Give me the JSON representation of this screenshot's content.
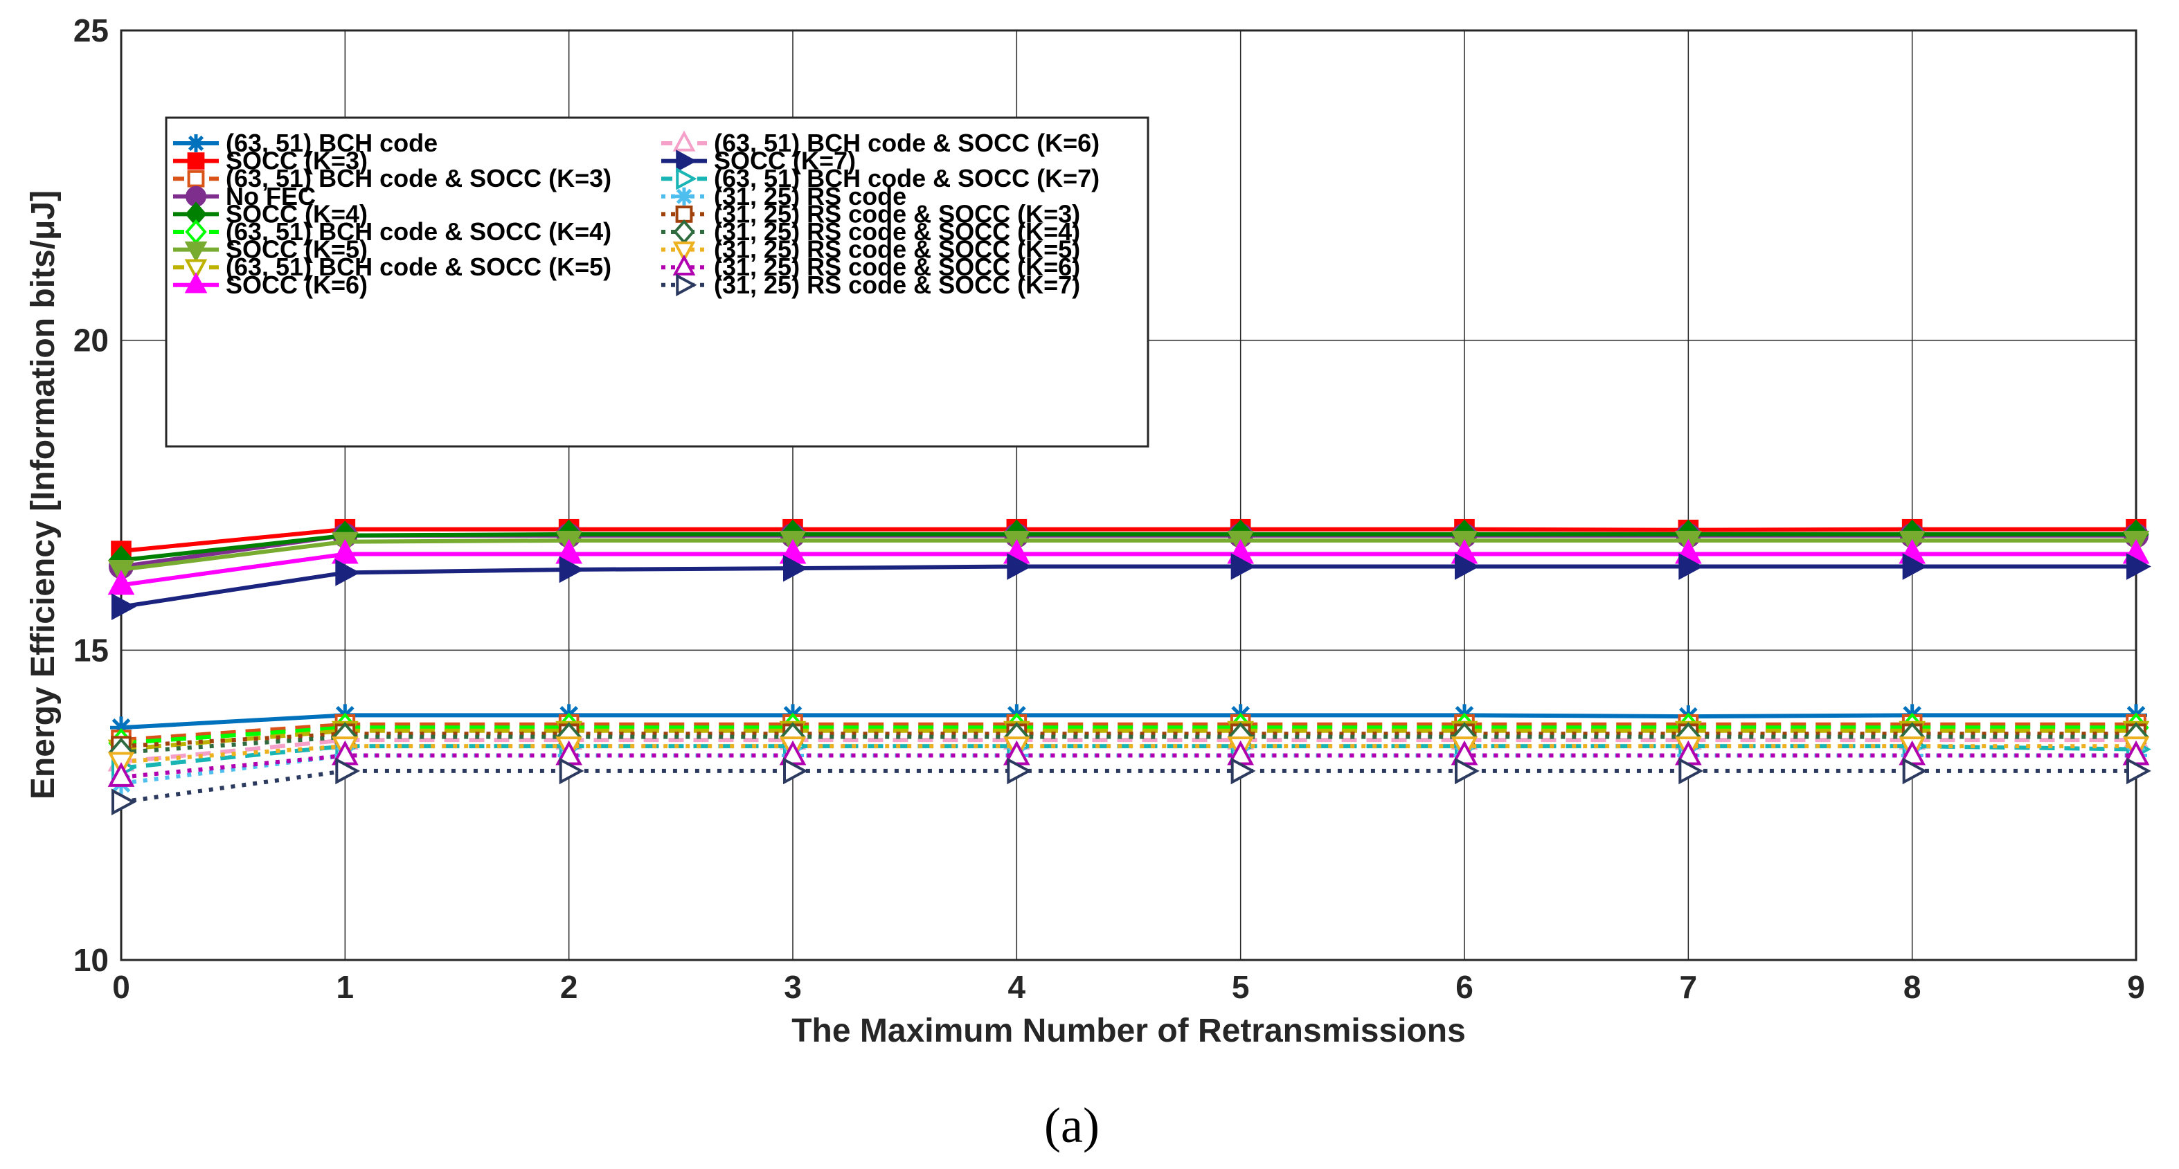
{
  "chart_data": {
    "type": "line",
    "xlabel": "The Maximum Number of Retransmissions",
    "ylabel": "Energy Efficiency [Information bits/μJ]",
    "xlim": [
      0,
      9
    ],
    "ylim": [
      10,
      25
    ],
    "x_ticks": [
      "0",
      "1",
      "2",
      "3",
      "4",
      "5",
      "6",
      "7",
      "8",
      "9"
    ],
    "y_ticks": [
      "10",
      "15",
      "20",
      "25"
    ],
    "y_tick_values": [
      10,
      15,
      20,
      25
    ],
    "grid": true,
    "legend_position": "top-left",
    "caption": "(a)",
    "x": [
      0,
      1,
      2,
      3,
      4,
      5,
      6,
      7,
      8,
      9
    ],
    "series": [
      {
        "name": "(63, 51) BCH code",
        "color": "#0072BD",
        "marker": "asterisk",
        "dash": "solid",
        "values": [
          13.75,
          13.95,
          13.95,
          13.95,
          13.95,
          13.95,
          13.95,
          13.93,
          13.95,
          13.95
        ]
      },
      {
        "name": "SOCC (K=3)",
        "color": "#FF0000",
        "marker": "square",
        "dash": "solid",
        "values": [
          16.6,
          16.95,
          16.95,
          16.95,
          16.95,
          16.95,
          16.95,
          16.94,
          16.95,
          16.95
        ]
      },
      {
        "name": "(63, 51) BCH code & SOCC (K=3)",
        "color": "#D95319",
        "marker": "square-open",
        "dash": "dashed",
        "values": [
          13.55,
          13.8,
          13.8,
          13.8,
          13.8,
          13.8,
          13.8,
          13.8,
          13.8,
          13.8
        ]
      },
      {
        "name": "No FEC",
        "color": "#7E2F8E",
        "marker": "circle",
        "dash": "solid",
        "values": [
          16.35,
          16.85,
          16.85,
          16.85,
          16.85,
          16.85,
          16.85,
          16.85,
          16.85,
          16.85
        ]
      },
      {
        "name": "SOCC (K=4)",
        "color": "#008000",
        "marker": "diamond",
        "dash": "solid",
        "values": [
          16.45,
          16.85,
          16.87,
          16.87,
          16.87,
          16.87,
          16.87,
          16.87,
          16.87,
          16.87
        ]
      },
      {
        "name": "(63, 51) BCH code & SOCC (K=4)",
        "color": "#00FF00",
        "marker": "diamond-open",
        "dash": "dashed",
        "values": [
          13.5,
          13.75,
          13.75,
          13.75,
          13.75,
          13.75,
          13.75,
          13.75,
          13.75,
          13.75
        ]
      },
      {
        "name": "SOCC (K=5)",
        "color": "#77AC30",
        "marker": "triangle-down",
        "dash": "solid",
        "values": [
          16.3,
          16.75,
          16.77,
          16.77,
          16.77,
          16.77,
          16.77,
          16.77,
          16.77,
          16.77
        ]
      },
      {
        "name": "(63, 51) BCH code & SOCC (K=5)",
        "color": "#BDB200",
        "marker": "triangle-down-open",
        "dash": "dashed",
        "values": [
          13.4,
          13.7,
          13.7,
          13.7,
          13.7,
          13.7,
          13.7,
          13.7,
          13.7,
          13.7
        ]
      },
      {
        "name": "SOCC (K=6)",
        "color": "#FF00FF",
        "marker": "triangle-up",
        "dash": "solid",
        "values": [
          16.05,
          16.55,
          16.55,
          16.55,
          16.55,
          16.55,
          16.55,
          16.55,
          16.55,
          16.55
        ]
      },
      {
        "name": "(63, 51) BCH code & SOCC (K=6)",
        "color": "#F4A0C8",
        "marker": "triangle-up-open",
        "dash": "dashed",
        "values": [
          13.2,
          13.55,
          13.55,
          13.55,
          13.55,
          13.55,
          13.55,
          13.55,
          13.55,
          13.55
        ]
      },
      {
        "name": "SOCC (K=7)",
        "color": "#1A237E",
        "marker": "triangle-right",
        "dash": "solid",
        "values": [
          15.7,
          16.25,
          16.3,
          16.32,
          16.35,
          16.35,
          16.35,
          16.35,
          16.35,
          16.35
        ]
      },
      {
        "name": "(63, 51) BCH code & SOCC (K=7)",
        "color": "#19B5B5",
        "marker": "triangle-right-open",
        "dash": "dashed",
        "values": [
          13.1,
          13.45,
          13.45,
          13.45,
          13.45,
          13.45,
          13.45,
          13.45,
          13.45,
          13.4
        ]
      },
      {
        "name": "(31, 25) RS code",
        "color": "#4DBEEE",
        "marker": "asterisk",
        "dash": "dotted",
        "values": [
          12.85,
          13.3,
          13.3,
          13.3,
          13.3,
          13.3,
          13.3,
          13.3,
          13.3,
          13.3
        ]
      },
      {
        "name": "(31, 25) RS code & SOCC (K=3)",
        "color": "#A0400A",
        "marker": "square-open",
        "dash": "dotted",
        "values": [
          13.45,
          13.65,
          13.65,
          13.65,
          13.65,
          13.65,
          13.65,
          13.65,
          13.65,
          13.65
        ]
      },
      {
        "name": "(31, 25) RS code & SOCC (K=4)",
        "color": "#2E6B3F",
        "marker": "diamond-open",
        "dash": "dotted",
        "values": [
          13.35,
          13.6,
          13.6,
          13.6,
          13.6,
          13.6,
          13.6,
          13.6,
          13.6,
          13.6
        ]
      },
      {
        "name": "(31, 25) RS code & SOCC (K=5)",
        "color": "#EDB120",
        "marker": "triangle-down-open",
        "dash": "dotted",
        "values": [
          13.2,
          13.45,
          13.45,
          13.45,
          13.45,
          13.45,
          13.45,
          13.45,
          13.45,
          13.45
        ]
      },
      {
        "name": "(31, 25) RS code & SOCC (K=6)",
        "color": "#B000B0",
        "marker": "triangle-up-open",
        "dash": "dotted",
        "values": [
          12.95,
          13.3,
          13.3,
          13.3,
          13.3,
          13.3,
          13.3,
          13.3,
          13.3,
          13.3
        ]
      },
      {
        "name": "(31, 25) RS code & SOCC (K=7)",
        "color": "#2B3A5E",
        "marker": "triangle-right-open",
        "dash": "dotted",
        "values": [
          12.55,
          13.05,
          13.05,
          13.05,
          13.05,
          13.05,
          13.05,
          13.05,
          13.05,
          13.05
        ]
      }
    ]
  }
}
